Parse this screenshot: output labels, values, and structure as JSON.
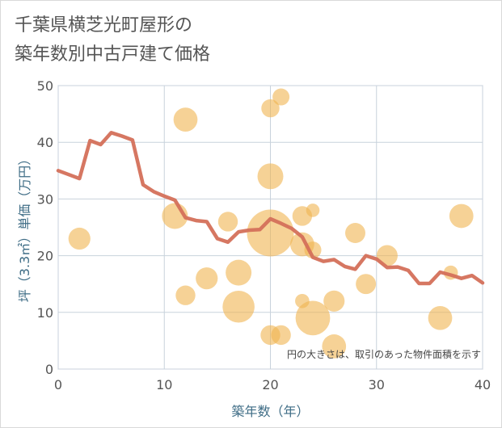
{
  "title": {
    "line1": "千葉県横芝光町屋形の",
    "line2": "築年数別中古戸建て価格"
  },
  "note": "円の大きさは、取引のあった物件面積を示す",
  "colors": {
    "line": "#d4705a",
    "bubble": "#f0b450",
    "grid": "#c8d2dc",
    "plot_border": "#b8c4d0",
    "axis_label": "#3f6d86"
  },
  "chart_data": {
    "type": "scatter",
    "title": "千葉県横芝光町屋形の築年数別中古戸建て価格",
    "xlabel": "築年数（年）",
    "ylabel": "坪（3.3㎡）単価（万円）",
    "xlim": [
      0,
      40
    ],
    "ylim": [
      0,
      50
    ],
    "xticks": [
      0,
      10,
      20,
      30,
      40
    ],
    "yticks": [
      0,
      10,
      20,
      30,
      40,
      50
    ],
    "grid": true,
    "series": [
      {
        "kind": "line",
        "x": [
          0,
          1,
          2,
          3,
          4,
          5,
          6,
          7,
          8,
          9,
          10,
          11,
          12,
          13,
          14,
          15,
          16,
          17,
          18,
          19,
          20,
          21,
          22,
          23,
          24,
          25,
          26,
          27,
          28,
          29,
          30,
          31,
          32,
          33,
          34,
          35,
          36,
          37,
          38,
          39,
          40
        ],
        "values": [
          35,
          34.3,
          33.6,
          40.3,
          39.6,
          41.7,
          41.1,
          40.4,
          32.5,
          31.3,
          30.5,
          29.8,
          26.7,
          26.2,
          26,
          23,
          22.4,
          24.2,
          24.5,
          24.6,
          26.5,
          25.7,
          24.8,
          23.3,
          19.7,
          19,
          19.3,
          18.1,
          17.6,
          20,
          19.4,
          17.9,
          18,
          17.4,
          15.1,
          15.1,
          17.1,
          16.6,
          16,
          16.5,
          15.2
        ]
      },
      {
        "kind": "bubble",
        "points": [
          {
            "x": 2,
            "y": 23,
            "size": 2
          },
          {
            "x": 11,
            "y": 27,
            "size": 3
          },
          {
            "x": 12,
            "y": 44,
            "size": 2.5
          },
          {
            "x": 12,
            "y": 13,
            "size": 1.5
          },
          {
            "x": 14,
            "y": 16,
            "size": 2
          },
          {
            "x": 16,
            "y": 26,
            "size": 1.5
          },
          {
            "x": 17,
            "y": 17,
            "size": 3
          },
          {
            "x": 17,
            "y": 11,
            "size": 5
          },
          {
            "x": 20,
            "y": 46,
            "size": 1.2
          },
          {
            "x": 21,
            "y": 48,
            "size": 1
          },
          {
            "x": 20,
            "y": 34,
            "size": 3
          },
          {
            "x": 20,
            "y": 24,
            "size": 12
          },
          {
            "x": 20,
            "y": 6,
            "size": 1.5
          },
          {
            "x": 21,
            "y": 6,
            "size": 1.5
          },
          {
            "x": 23,
            "y": 27,
            "size": 1.5
          },
          {
            "x": 24,
            "y": 28,
            "size": 0.5
          },
          {
            "x": 23,
            "y": 22,
            "size": 2.5
          },
          {
            "x": 24,
            "y": 21,
            "size": 1
          },
          {
            "x": 23,
            "y": 12,
            "size": 0.6
          },
          {
            "x": 24,
            "y": 9,
            "size": 6
          },
          {
            "x": 26,
            "y": 12,
            "size": 1.8
          },
          {
            "x": 26,
            "y": 4,
            "size": 2.5
          },
          {
            "x": 28,
            "y": 24,
            "size": 1.6
          },
          {
            "x": 29,
            "y": 15,
            "size": 1.6
          },
          {
            "x": 31,
            "y": 20,
            "size": 1.8
          },
          {
            "x": 36,
            "y": 9,
            "size": 2.5
          },
          {
            "x": 37,
            "y": 17,
            "size": 0.6
          },
          {
            "x": 38,
            "y": 27,
            "size": 2.5
          }
        ]
      }
    ]
  }
}
